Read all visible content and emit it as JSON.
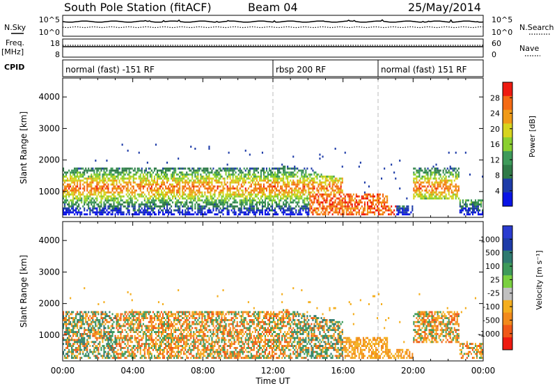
{
  "header": {
    "station": "South Pole Station (fitACF)",
    "beam": "Beam 04",
    "date": "25/May/2014"
  },
  "left_labels": {
    "nsky": "N.Sky",
    "freq": "Freq.",
    "freq_unit": "[MHz]",
    "cpid": "CPID",
    "nsky_ticks": [
      "10^5",
      "10^0"
    ],
    "freq_ticks": [
      "18",
      "8"
    ]
  },
  "right_labels": {
    "nsearch": "N.Search",
    "nave": "Nave",
    "nsearch_ticks": [
      "10^5",
      "10^0"
    ],
    "nave_ticks": [
      "60",
      "0"
    ]
  },
  "cpid_segments": [
    {
      "label": "normal (fast) -151 RF",
      "start_h": 0,
      "end_h": 12
    },
    {
      "label": "rbsp 200 RF",
      "start_h": 12,
      "end_h": 18
    },
    {
      "label": "normal (fast) 151 RF",
      "start_h": 18,
      "end_h": 24
    }
  ],
  "x_axis": {
    "label": "Time UT",
    "ticks": [
      "00:00",
      "04:00",
      "08:00",
      "12:00",
      "16:00",
      "20:00",
      "00:00"
    ]
  },
  "colors": {
    "power": [
      "#0a14e6",
      "#1e3ca8",
      "#2f7a48",
      "#3e9a5a",
      "#8ad030",
      "#d6d41e",
      "#f09a18",
      "#f46a14",
      "#ee1a10"
    ],
    "velocity": [
      "#ee1a10",
      "#f05818",
      "#f28a1c",
      "#f4ae1e",
      "#c0c0c0",
      "#7ad040",
      "#3e9a5a",
      "#2f7a70",
      "#1e3ca8",
      "#2a3cd0"
    ]
  },
  "chart_data": [
    {
      "type": "heatmap",
      "title": "",
      "xlabel": "Time UT",
      "ylabel": "Slant Range [km]",
      "xlim": [
        0,
        24
      ],
      "ylim": [
        180,
        4600
      ],
      "yticks": [
        "1000",
        "2000",
        "3000",
        "4000"
      ],
      "colorbar_label": "Power [dB]",
      "colorbar_ticks": [
        "4",
        "8",
        "12",
        "16",
        "20",
        "24",
        "28"
      ],
      "colorbar_range": [
        0,
        32
      ]
    },
    {
      "type": "heatmap",
      "title": "",
      "xlabel": "Time UT",
      "ylabel": "Slant Range [km]",
      "xlim": [
        0,
        24
      ],
      "ylim": [
        180,
        4600
      ],
      "yticks": [
        "1000",
        "2000",
        "3000",
        "4000"
      ],
      "colorbar_label": "Velocity [m s⁻¹]",
      "colorbar_ticks": [
        "1000",
        "500",
        "100",
        "25",
        "-25",
        "-100",
        "-500",
        "-1000"
      ]
    }
  ]
}
